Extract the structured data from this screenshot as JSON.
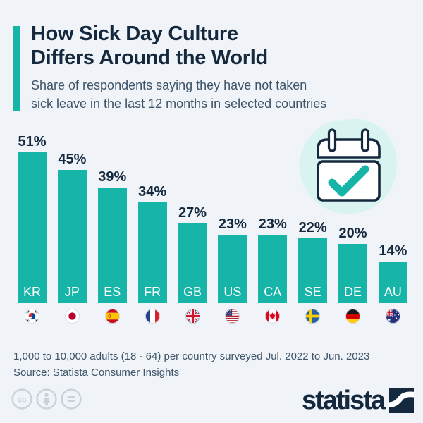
{
  "palette": {
    "background": "#f0f3f8",
    "accent_teal": "#16b5a8",
    "title_navy": "#15293e",
    "subtitle_slate": "#3e5468",
    "blob_teal": "#d9f3f0",
    "license_gray": "#c9d2da",
    "bar_label_white": "#ffffff"
  },
  "header": {
    "title_line1": "How Sick Day Culture",
    "title_line2": "Differs Around the World",
    "subtitle_line1": "Share of respondents saying they have not taken",
    "subtitle_line2": "sick leave in the last 12 months in selected countries"
  },
  "chart_data": {
    "type": "bar",
    "categories": [
      "KR",
      "JP",
      "ES",
      "FR",
      "GB",
      "US",
      "CA",
      "SE",
      "DE",
      "AU"
    ],
    "values": [
      51,
      45,
      39,
      34,
      27,
      23,
      23,
      22,
      20,
      14
    ],
    "value_labels": [
      "51%",
      "45%",
      "39%",
      "34%",
      "27%",
      "23%",
      "23%",
      "22%",
      "20%",
      "14%"
    ],
    "flags": [
      "south-korea",
      "japan",
      "spain",
      "france",
      "united-kingdom",
      "united-states",
      "canada",
      "sweden",
      "germany",
      "australia"
    ],
    "title": "How Sick Day Culture Differs Around the World",
    "xlabel": "",
    "ylabel": "",
    "ylim": [
      0,
      55
    ],
    "bar_color": "#16b5a8",
    "grid": false,
    "legend": "none"
  },
  "illustration": {
    "name": "calendar-check-icon"
  },
  "footer": {
    "note_line1": "1,000 to 10,000 adults (18 - 64) per country surveyed Jul. 2022 to Jun. 2023",
    "note_line2": "Source: Statista Consumer Insights",
    "brand": "statista"
  },
  "license": {
    "icons": [
      "cc-icon",
      "attribution-icon",
      "equal-icon"
    ]
  }
}
